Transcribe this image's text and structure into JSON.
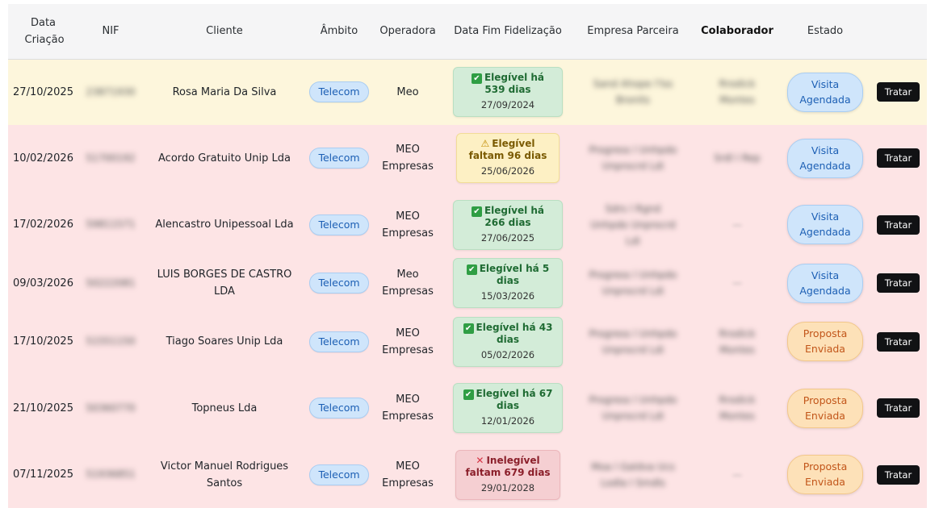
{
  "headers": {
    "data_criacao": "Data Criação",
    "nif": "NIF",
    "cliente": "Cliente",
    "ambito": "Âmbito",
    "operadora": "Operadora",
    "data_fim": "Data Fim Fidelização",
    "empresa": "Empresa Parceira",
    "colaborador": "Colaborador",
    "estado": "Estado"
  },
  "rows": [
    {
      "data": "27/10/2025",
      "nif": "23871930",
      "cliente": "Rosa Maria Da Silva",
      "ambito": "Telecom",
      "operadora": "Meo",
      "elig_title": "Elegível há 539 dias",
      "elig_date": "27/09/2024",
      "elig_status": "ok",
      "empresa": "Sand Ahope l'lss Bronits",
      "colaborador": "Rrodick Montes",
      "estado": "Visita Agendada",
      "estado_type": "visita",
      "action": "Tratar"
    },
    {
      "data": "10/02/2026",
      "nif": "51700192",
      "cliente": "Acordo Gratuito Unip Lda",
      "ambito": "Telecom",
      "operadora": "MEO Empresas",
      "elig_title": "Elegível faltam 96 dias",
      "elig_date": "25/06/2026",
      "elig_status": "warn",
      "empresa": "Progress l Unhpdo Unprocrd Ldi",
      "colaborador": "Srdl I Rep",
      "estado": "Visita Agendada",
      "estado_type": "visita",
      "action": "Tratar"
    },
    {
      "data": "17/02/2026",
      "nif": "59811571",
      "cliente": "Alencastro Unipessoal Lda",
      "ambito": "Telecom",
      "operadora": "MEO Empresas",
      "elig_title": "Elegível há 266 dias",
      "elig_date": "27/06/2025",
      "elig_status": "ok",
      "empresa": "Sdrs l Rgnd Unhpdo Unprocrd Ldi",
      "colaborador": "—",
      "estado": "Visita Agendada",
      "estado_type": "visita",
      "action": "Tratar"
    },
    {
      "data": "09/03/2026",
      "nif": "50222081",
      "cliente": "LUIS BORGES DE CASTRO LDA",
      "ambito": "Telecom",
      "operadora": "Meo Empresas",
      "elig_title": "Elegível há 5 dias",
      "elig_date": "15/03/2026",
      "elig_status": "ok",
      "empresa": "Progress l Unhpdo Unprocrd Ldi",
      "colaborador": "—",
      "estado": "Visita Agendada",
      "estado_type": "visita",
      "action": "Tratar"
    },
    {
      "data": "17/10/2025",
      "nif": "51551150",
      "cliente": "Tiago Soares Unip Lda",
      "ambito": "Telecom",
      "operadora": "MEO Empresas",
      "elig_title": "Elegível há 43 dias",
      "elig_date": "05/02/2026",
      "elig_status": "ok",
      "empresa": "Progress l Unhpdo Unprocrd Ldi",
      "colaborador": "Rrodick Montes",
      "estado": "Proposta Enviada",
      "estado_type": "proposta",
      "action": "Tratar"
    },
    {
      "data": "21/10/2025",
      "nif": "50360770",
      "cliente": "Topneus Lda",
      "ambito": "Telecom",
      "operadora": "MEO Empresas",
      "elig_title": "Elegível há 67 dias",
      "elig_date": "12/01/2026",
      "elig_status": "ok",
      "empresa": "Progress l Unhpdo Unprocrd Ldi",
      "colaborador": "Rrodick Montes",
      "estado": "Proposta Enviada",
      "estado_type": "proposta",
      "action": "Tratar"
    },
    {
      "data": "07/11/2025",
      "nif": "51936851",
      "cliente": "Victor Manuel Rodrigues Santos",
      "ambito": "Telecom",
      "operadora": "MEO Empresas",
      "elig_title": "Inelegível faltam 679 dias",
      "elig_date": "29/01/2028",
      "elig_status": "bad",
      "empresa": "Moa l Galdva Ucs Lodla I Smdls",
      "colaborador": "—",
      "estado": "Proposta Enviada",
      "estado_type": "proposta",
      "action": "Tratar"
    }
  ],
  "colors": {
    "row_yellow": "#fdf6dc",
    "row_red": "#fde4e5",
    "telecom_blue": "#cfe5fb",
    "btn_black": "#111214"
  },
  "icons": {
    "ok": "check-box-icon",
    "warn": "warning-icon",
    "bad": "cross-icon"
  }
}
